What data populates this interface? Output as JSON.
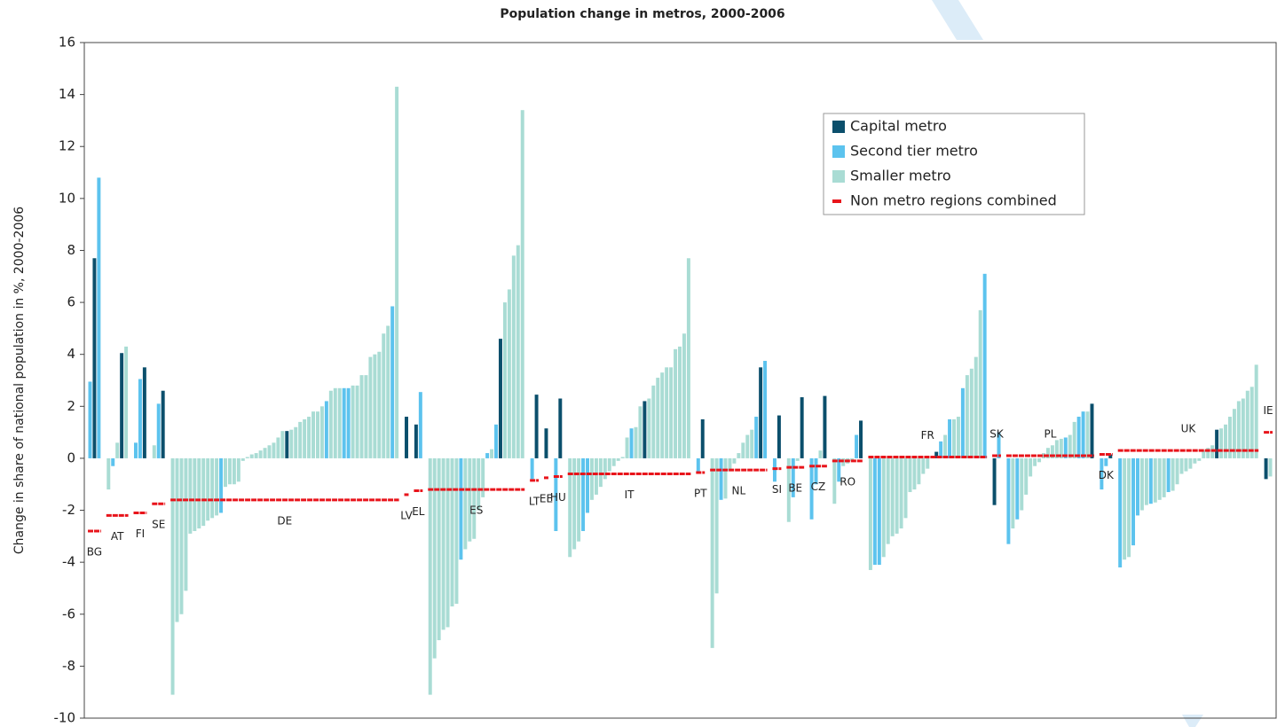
{
  "chart_data": {
    "type": "bar",
    "title": "Population change in metros, 2000-2006",
    "y_label": "Change in share of national population in %, 2000-2006",
    "ylim": [
      -10,
      16
    ],
    "yticks": [
      -10,
      -8,
      -6,
      -4,
      -2,
      0,
      2,
      4,
      6,
      8,
      10,
      12,
      14,
      16
    ],
    "series": [
      {
        "name": "Capital metro",
        "color": "#0b4f6c"
      },
      {
        "name": "Second tier metro",
        "color": "#5cc3ee"
      },
      {
        "name": "Smaller metro",
        "color": "#a9dcd4"
      },
      {
        "name": "Non metro regions combined",
        "color": "#e8141b"
      }
    ],
    "groups": [
      {
        "label": "BG",
        "non_metro": -2.8,
        "values": [
          2.95,
          7.7,
          10.8
        ],
        "kinds": [
          1,
          0,
          1
        ]
      },
      {
        "label": "AT",
        "non_metro": -2.2,
        "values": [
          -1.2,
          -0.3,
          0.6,
          4.05,
          4.3
        ],
        "kinds": [
          2,
          1,
          2,
          0,
          2
        ]
      },
      {
        "label": "FI",
        "non_metro": -2.1,
        "values": [
          0.6,
          3.05,
          3.5
        ],
        "kinds": [
          1,
          1,
          0
        ]
      },
      {
        "label": "SE",
        "non_metro": -1.75,
        "values": [
          0.5,
          2.1,
          2.6
        ],
        "kinds": [
          2,
          1,
          0
        ]
      },
      {
        "label": "DE",
        "non_metro": -1.6,
        "values": [
          -9.1,
          -6.3,
          -6.0,
          -5.1,
          -2.9,
          -2.8,
          -2.7,
          -2.6,
          -2.4,
          -2.3,
          -2.2,
          -2.1,
          -1.1,
          -1.0,
          -1.0,
          -0.9,
          -0.1,
          0.05,
          0.15,
          0.2,
          0.3,
          0.4,
          0.5,
          0.6,
          0.8,
          1.05,
          1.05,
          1.1,
          1.2,
          1.4,
          1.5,
          1.6,
          1.8,
          1.8,
          2.0,
          2.2,
          2.6,
          2.7,
          2.7,
          2.7,
          2.7,
          2.8,
          2.8,
          3.2,
          3.2,
          3.9,
          4.0,
          4.1,
          4.8,
          5.1,
          5.85,
          14.3
        ],
        "kinds": [
          2,
          2,
          2,
          2,
          2,
          2,
          2,
          2,
          2,
          2,
          2,
          1,
          2,
          2,
          2,
          2,
          2,
          2,
          2,
          2,
          2,
          2,
          2,
          2,
          2,
          2,
          0,
          2,
          2,
          2,
          2,
          2,
          2,
          2,
          2,
          1,
          2,
          2,
          2,
          1,
          1,
          2,
          2,
          2,
          2,
          2,
          2,
          2,
          2,
          2,
          1,
          2
        ]
      },
      {
        "label": "LV",
        "non_metro": -1.4,
        "values": [
          1.6
        ],
        "kinds": [
          0
        ]
      },
      {
        "label": "EL",
        "non_metro": -1.25,
        "values": [
          1.3,
          2.55
        ],
        "kinds": [
          0,
          1
        ]
      },
      {
        "label": "ES",
        "non_metro": -1.2,
        "values": [
          -9.1,
          -7.7,
          -7.0,
          -6.6,
          -6.5,
          -5.7,
          -5.6,
          -3.9,
          -3.5,
          -3.2,
          -3.1,
          -2.0,
          -1.5,
          0.2,
          0.35,
          1.3,
          4.6,
          6.0,
          6.5,
          7.8,
          8.2,
          13.4
        ],
        "kinds": [
          2,
          2,
          2,
          2,
          2,
          2,
          2,
          1,
          2,
          2,
          2,
          2,
          2,
          1,
          2,
          1,
          0,
          2,
          2,
          2,
          2,
          2
        ]
      },
      {
        "label": "LT",
        "non_metro": -0.85,
        "values": [
          -0.8,
          2.45
        ],
        "kinds": [
          1,
          0
        ]
      },
      {
        "label": "EE",
        "non_metro": -0.75,
        "values": [
          1.15
        ],
        "kinds": [
          0
        ]
      },
      {
        "label": "HU",
        "non_metro": -0.7,
        "values": [
          -2.8,
          2.3
        ],
        "kinds": [
          1,
          0
        ]
      },
      {
        "label": "IT",
        "non_metro": -0.6,
        "values": [
          -3.8,
          -3.5,
          -3.2,
          -2.8,
          -2.1,
          -1.6,
          -1.4,
          -1.1,
          -0.8,
          -0.5,
          -0.3,
          -0.1,
          0.05,
          0.8,
          1.15,
          1.2,
          2.0,
          2.2,
          2.3,
          2.8,
          3.1,
          3.3,
          3.5,
          3.5,
          4.2,
          4.3,
          4.8,
          7.7
        ],
        "kinds": [
          2,
          2,
          2,
          1,
          1,
          2,
          2,
          2,
          2,
          2,
          2,
          2,
          2,
          2,
          1,
          2,
          2,
          0,
          2,
          2,
          2,
          2,
          2,
          2,
          2,
          2,
          2,
          2
        ]
      },
      {
        "label": "PT",
        "non_metro": -0.55,
        "values": [
          -0.5,
          1.5
        ],
        "kinds": [
          1,
          0
        ]
      },
      {
        "label": "NL",
        "non_metro": -0.45,
        "values": [
          -7.3,
          -5.2,
          -1.6,
          -1.55,
          -0.5,
          -0.2,
          0.2,
          0.6,
          0.9,
          1.1,
          1.6,
          3.5,
          3.75
        ],
        "kinds": [
          2,
          2,
          1,
          2,
          2,
          2,
          2,
          2,
          2,
          2,
          1,
          0,
          1
        ]
      },
      {
        "label": "SI",
        "non_metro": -0.4,
        "values": [
          -0.9,
          1.65
        ],
        "kinds": [
          1,
          0
        ]
      },
      {
        "label": "BE",
        "non_metro": -0.35,
        "values": [
          -2.45,
          -1.5,
          -0.1,
          2.35
        ],
        "kinds": [
          2,
          1,
          2,
          0
        ]
      },
      {
        "label": "CZ",
        "non_metro": -0.3,
        "values": [
          -2.35,
          -1.0,
          0.3,
          2.4
        ],
        "kinds": [
          1,
          1,
          2,
          0
        ]
      },
      {
        "label": "RO",
        "non_metro": -0.1,
        "values": [
          -1.75,
          -0.9,
          -0.3,
          -0.2,
          -0.1,
          0.9,
          1.45
        ],
        "kinds": [
          2,
          1,
          2,
          2,
          2,
          1,
          0
        ]
      },
      {
        "label": "FR",
        "non_metro": 0.05,
        "values": [
          -4.3,
          -4.1,
          -4.1,
          -3.8,
          -3.3,
          -3.0,
          -2.9,
          -2.7,
          -2.3,
          -1.3,
          -1.2,
          -1.0,
          -0.6,
          -0.4,
          0.05,
          0.25,
          0.65,
          0.9,
          1.5,
          1.5,
          1.6,
          2.7,
          3.2,
          3.45,
          3.9,
          5.7,
          7.1
        ],
        "kinds": [
          2,
          1,
          1,
          2,
          2,
          2,
          2,
          2,
          2,
          2,
          2,
          2,
          2,
          2,
          2,
          0,
          1,
          2,
          1,
          2,
          2,
          1,
          2,
          2,
          2,
          2,
          1
        ]
      },
      {
        "label": "SK",
        "non_metro": 0.1,
        "values": [
          -1.8,
          1.0
        ],
        "kinds": [
          0,
          1
        ]
      },
      {
        "label": "PL",
        "non_metro": 0.1,
        "values": [
          -3.3,
          -2.7,
          -2.35,
          -2.0,
          -1.4,
          -0.7,
          -0.3,
          -0.15,
          0.2,
          0.4,
          0.5,
          0.7,
          0.75,
          0.8,
          0.9,
          1.4,
          1.6,
          1.8,
          1.8,
          2.1
        ],
        "kinds": [
          1,
          2,
          1,
          2,
          2,
          2,
          2,
          2,
          2,
          2,
          2,
          2,
          2,
          1,
          2,
          2,
          1,
          1,
          2,
          0
        ]
      },
      {
        "label": "DK",
        "non_metro": 0.15,
        "values": [
          -1.2,
          -0.3,
          0.15
        ],
        "kinds": [
          1,
          1,
          0
        ]
      },
      {
        "label": "UK",
        "non_metro": 0.3,
        "values": [
          -4.2,
          -3.9,
          -3.8,
          -3.35,
          -2.2,
          -2.0,
          -1.8,
          -1.75,
          -1.7,
          -1.6,
          -1.5,
          -1.3,
          -1.25,
          -1.0,
          -0.6,
          -0.5,
          -0.4,
          -0.2,
          -0.1,
          0.3,
          0.4,
          0.5,
          1.1,
          1.15,
          1.3,
          1.6,
          1.9,
          2.2,
          2.3,
          2.6,
          2.75,
          3.6
        ],
        "kinds": [
          1,
          2,
          2,
          1,
          1,
          2,
          2,
          1,
          2,
          2,
          2,
          1,
          2,
          2,
          2,
          2,
          2,
          2,
          2,
          2,
          2,
          2,
          0,
          2,
          2,
          2,
          2,
          2,
          2,
          2,
          2,
          2
        ]
      },
      {
        "label": "IE",
        "non_metro": 1.0,
        "values": [
          -0.8,
          -0.7
        ],
        "kinds": [
          0,
          2
        ]
      }
    ]
  }
}
